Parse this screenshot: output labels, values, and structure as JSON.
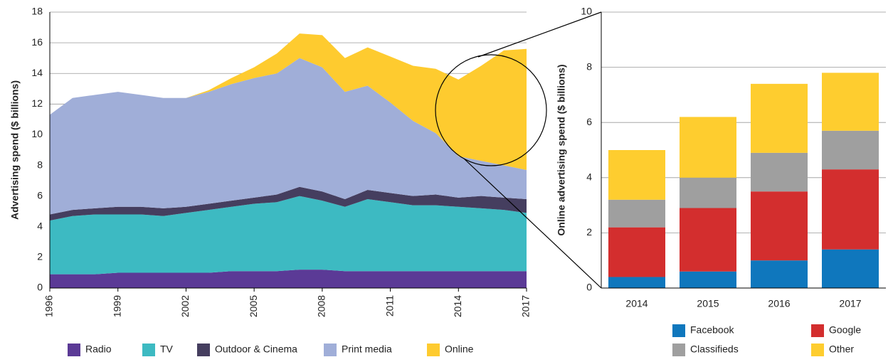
{
  "chart_data": [
    {
      "type": "area",
      "y_label": "Advertising spend ($ billions)",
      "x": [
        1996,
        1997,
        1998,
        1999,
        2000,
        2001,
        2002,
        2003,
        2004,
        2005,
        2006,
        2007,
        2008,
        2009,
        2010,
        2011,
        2012,
        2013,
        2014,
        2015,
        2016,
        2017
      ],
      "xlim": [
        1996,
        2017
      ],
      "xticks": [
        1996,
        1999,
        2002,
        2005,
        2008,
        2011,
        2014,
        2017
      ],
      "ylim": [
        0,
        18
      ],
      "yticks": [
        0,
        2,
        4,
        6,
        8,
        10,
        12,
        14,
        16,
        18
      ],
      "grid": true,
      "series": [
        {
          "name": "Radio",
          "color": "#5b3a96",
          "values": [
            0.9,
            0.9,
            0.9,
            1.0,
            1.0,
            1.0,
            1.0,
            1.0,
            1.1,
            1.1,
            1.1,
            1.2,
            1.2,
            1.1,
            1.1,
            1.1,
            1.1,
            1.1,
            1.1,
            1.1,
            1.1,
            1.1
          ]
        },
        {
          "name": "TV",
          "color": "#3dbac2",
          "values": [
            3.5,
            3.8,
            3.9,
            3.8,
            3.8,
            3.7,
            3.9,
            4.1,
            4.2,
            4.4,
            4.5,
            4.8,
            4.5,
            4.2,
            4.7,
            4.5,
            4.3,
            4.3,
            4.2,
            4.1,
            4.0,
            3.8
          ]
        },
        {
          "name": "Outdoor & Cinema",
          "color": "#453e5f",
          "values": [
            0.4,
            0.4,
            0.4,
            0.5,
            0.5,
            0.5,
            0.4,
            0.4,
            0.4,
            0.4,
            0.5,
            0.6,
            0.6,
            0.5,
            0.6,
            0.6,
            0.6,
            0.7,
            0.6,
            0.8,
            0.8,
            0.9
          ]
        },
        {
          "name": "Print media",
          "color": "#a0aed8",
          "values": [
            6.5,
            7.3,
            7.4,
            7.5,
            7.3,
            7.2,
            7.1,
            7.3,
            7.6,
            7.8,
            7.9,
            8.4,
            8.1,
            7.0,
            6.8,
            5.9,
            4.9,
            4.0,
            2.7,
            2.3,
            2.1,
            1.9
          ]
        },
        {
          "name": "Online",
          "color": "#fecb2f",
          "values": [
            0,
            0,
            0,
            0,
            0,
            0,
            0,
            0.1,
            0.4,
            0.7,
            1.3,
            1.6,
            2.1,
            2.2,
            2.5,
            3.0,
            3.6,
            4.2,
            5.0,
            6.2,
            7.5,
            7.9
          ]
        }
      ]
    },
    {
      "type": "bar",
      "y_label": "Online advertising spend ($ billions)",
      "categories": [
        "2014",
        "2015",
        "2016",
        "2017"
      ],
      "ylim": [
        0,
        10
      ],
      "yticks": [
        0,
        2,
        4,
        6,
        8,
        10
      ],
      "grid": true,
      "series": [
        {
          "name": "Facebook",
          "color": "#0f77bd",
          "values": [
            0.4,
            0.6,
            1.0,
            1.4
          ]
        },
        {
          "name": "Google",
          "color": "#d32e2e",
          "values": [
            1.8,
            2.3,
            2.5,
            2.9
          ]
        },
        {
          "name": "Classifieds",
          "color": "#9f9f9f",
          "values": [
            1.0,
            1.1,
            1.4,
            1.4
          ]
        },
        {
          "name": "Other",
          "color": "#fecd2f",
          "values": [
            1.8,
            2.2,
            2.5,
            2.1
          ]
        }
      ]
    }
  ]
}
